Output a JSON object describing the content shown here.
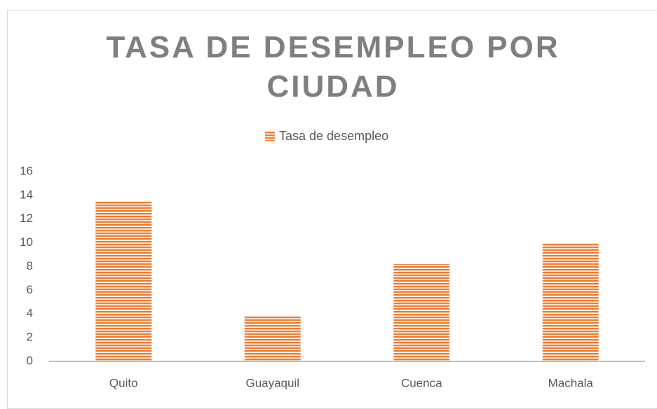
{
  "chart_data": {
    "type": "bar",
    "title": "TASA DE DESEMPLEO POR CIUDAD",
    "categories": [
      "Quito",
      "Guayaquil",
      "Cuenca",
      "Machala"
    ],
    "series": [
      {
        "name": "Tasa de desempleo",
        "color": "#ed7d31",
        "values": [
          13.5,
          3.8,
          8.2,
          10
        ]
      }
    ],
    "ylim": [
      0,
      16
    ],
    "yticks": [
      0,
      2,
      4,
      6,
      8,
      10,
      12,
      14,
      16
    ],
    "grid": false,
    "legend": "top"
  }
}
